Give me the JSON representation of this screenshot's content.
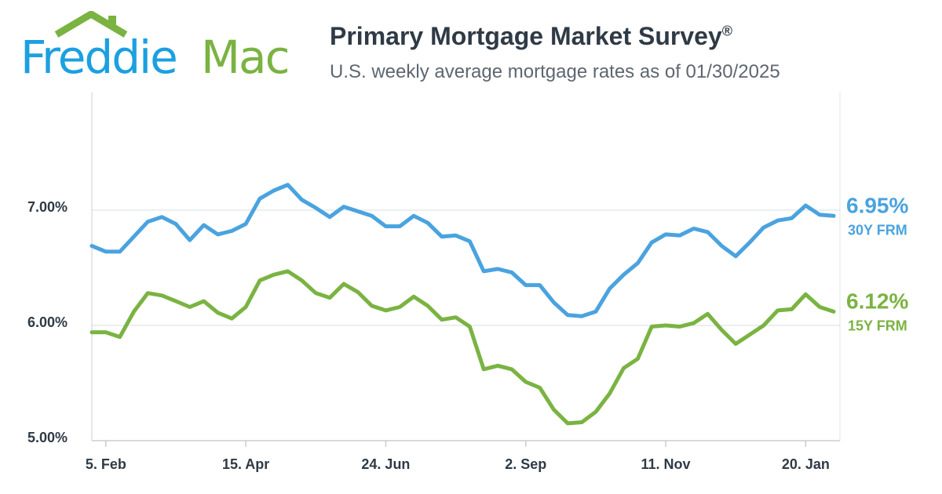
{
  "logo": {
    "part1": "Freddie",
    "part2": "Mac",
    "colors": {
      "blue": "#1ba0e0",
      "green": "#7ab342"
    }
  },
  "header": {
    "title": "Primary Mortgage Market Survey",
    "title_mark": "®",
    "subtitle": "U.S. weekly average mortgage rates as of 01/30/2025"
  },
  "chart_data": {
    "type": "line",
    "title": "",
    "xlabel": "",
    "ylabel": "",
    "ylim": [
      5.0,
      7.0
    ],
    "y_ticks": [
      {
        "value": 7.0,
        "label": "7.00%"
      },
      {
        "value": 6.0,
        "label": "6.00%"
      },
      {
        "value": 5.0,
        "label": "5.00%"
      }
    ],
    "x_ticks": [
      {
        "index": 1,
        "label": "5. Feb"
      },
      {
        "index": 11,
        "label": "15. Apr"
      },
      {
        "index": 21,
        "label": "24. Jun"
      },
      {
        "index": 31,
        "label": "2. Sep"
      },
      {
        "index": 41,
        "label": "11. Nov"
      },
      {
        "index": 51,
        "label": "20. Jan"
      }
    ],
    "grid": true,
    "legend": "right-end labels",
    "series": [
      {
        "name": "30Y FRM",
        "end_label": "6.95%",
        "color": "#4aa3df",
        "values": [
          6.69,
          6.64,
          6.64,
          6.77,
          6.9,
          6.94,
          6.88,
          6.74,
          6.87,
          6.79,
          6.82,
          6.88,
          7.1,
          7.17,
          7.22,
          7.09,
          7.02,
          6.94,
          7.03,
          6.99,
          6.95,
          6.86,
          6.86,
          6.95,
          6.89,
          6.77,
          6.78,
          6.73,
          6.47,
          6.49,
          6.46,
          6.35,
          6.35,
          6.2,
          6.09,
          6.08,
          6.12,
          6.32,
          6.44,
          6.54,
          6.72,
          6.79,
          6.78,
          6.84,
          6.81,
          6.69,
          6.6,
          6.72,
          6.85,
          6.91,
          6.93,
          7.04,
          6.96,
          6.95
        ]
      },
      {
        "name": "15Y FRM",
        "end_label": "6.12%",
        "color": "#7ab342",
        "values": [
          5.94,
          5.94,
          5.9,
          6.12,
          6.28,
          6.26,
          6.21,
          6.16,
          6.21,
          6.11,
          6.06,
          6.16,
          6.39,
          6.44,
          6.47,
          6.39,
          6.28,
          6.24,
          6.36,
          6.29,
          6.17,
          6.13,
          6.16,
          6.25,
          6.17,
          6.05,
          6.07,
          5.99,
          5.62,
          5.65,
          5.62,
          5.51,
          5.46,
          5.27,
          5.15,
          5.16,
          5.25,
          5.41,
          5.63,
          5.71,
          5.99,
          6.0,
          5.99,
          6.02,
          6.1,
          5.96,
          5.84,
          5.92,
          6.0,
          6.13,
          6.14,
          6.27,
          6.16,
          6.12
        ]
      }
    ]
  }
}
